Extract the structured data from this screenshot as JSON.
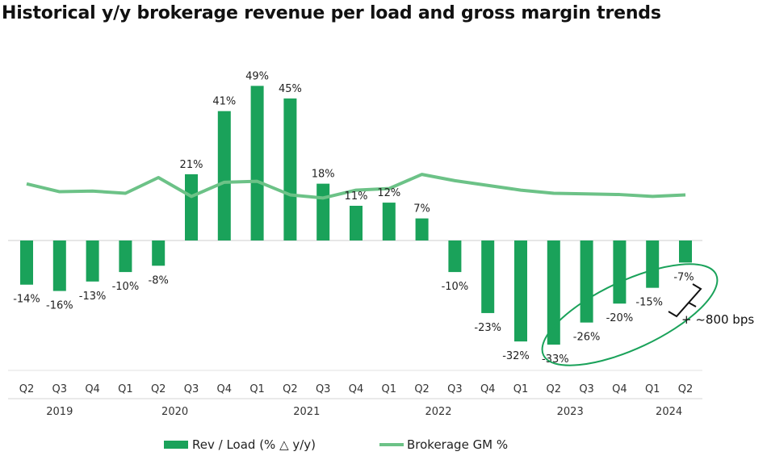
{
  "title": "Historical y/y brokerage revenue per load and gross margin trends",
  "colors": {
    "bar": "#1aa25a",
    "line": "#6cc287",
    "ellipse": "#1aa25a",
    "axis": "#cfcfcf"
  },
  "chart_data": {
    "type": "bar",
    "categories": [
      "Q2",
      "Q3",
      "Q4",
      "Q1",
      "Q2",
      "Q3",
      "Q4",
      "Q1",
      "Q2",
      "Q3",
      "Q4",
      "Q1",
      "Q2",
      "Q3",
      "Q4",
      "Q1",
      "Q2",
      "Q3",
      "Q4",
      "Q1",
      "Q2"
    ],
    "years": [
      {
        "label": "2019",
        "start": 0,
        "end": 2
      },
      {
        "label": "2020",
        "start": 3,
        "end": 6
      },
      {
        "label": "2021",
        "start": 7,
        "end": 10
      },
      {
        "label": "2022",
        "start": 11,
        "end": 14
      },
      {
        "label": "2023",
        "start": 15,
        "end": 18
      },
      {
        "label": "2024",
        "start": 19,
        "end": 20
      }
    ],
    "series": [
      {
        "name": "Rev / Load (% △ y/y)",
        "type": "bar",
        "values": [
          -14,
          -16,
          -13,
          -10,
          -8,
          21,
          41,
          49,
          45,
          18,
          11,
          12,
          7,
          -10,
          -23,
          -32,
          -33,
          -26,
          -20,
          -15,
          -7
        ],
        "labels": [
          "-14%",
          "-16%",
          "-13%",
          "-10%",
          "-8%",
          "21%",
          "41%",
          "49%",
          "45%",
          "18%",
          "11%",
          "12%",
          "7%",
          "-10%",
          "-23%",
          "-32%",
          "-33%",
          "-26%",
          "-20%",
          "-15%",
          "-7%"
        ]
      },
      {
        "name": "Brokerage GM %",
        "type": "line",
        "values": [
          18,
          15.5,
          15.7,
          15,
          20,
          14,
          18.5,
          18.8,
          14.5,
          13.5,
          16,
          16.5,
          21,
          19,
          17.5,
          16,
          15,
          14.8,
          14.6,
          14,
          14.5
        ]
      }
    ],
    "annotation": "+ ~800 bps",
    "ylim": [
      -42,
      55
    ]
  }
}
